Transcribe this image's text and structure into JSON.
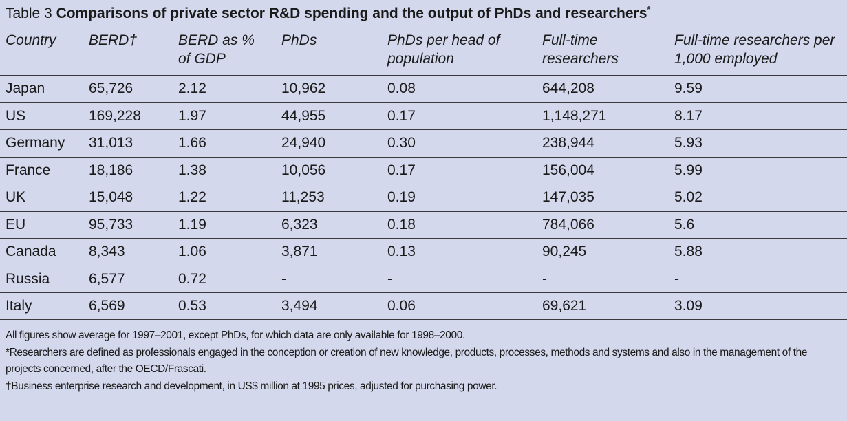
{
  "title": {
    "number": "Table 3",
    "text": "Comparisons of private sector R&D spending and the output of PhDs and researchers",
    "marker": "*"
  },
  "table": {
    "headers": [
      "Country",
      "BERD†",
      "BERD as % of GDP",
      "PhDs",
      "PhDs per head of population",
      "Full-time researchers",
      "Full-time researchers per 1,000 employed"
    ],
    "rows": [
      [
        "Japan",
        "65,726",
        "2.12",
        "10,962",
        "0.08",
        "644,208",
        "9.59"
      ],
      [
        "US",
        "169,228",
        "1.97",
        "44,955",
        "0.17",
        "1,148,271",
        "8.17"
      ],
      [
        "Germany",
        "31,013",
        "1.66",
        "24,940",
        "0.30",
        "238,944",
        "5.93"
      ],
      [
        "France",
        "18,186",
        "1.38",
        "10,056",
        "0.17",
        "156,004",
        "5.99"
      ],
      [
        "UK",
        "15,048",
        "1.22",
        "11,253",
        "0.19",
        "147,035",
        "5.02"
      ],
      [
        "EU",
        "95,733",
        "1.19",
        "6,323",
        "0.18",
        "784,066",
        "5.6"
      ],
      [
        "Canada",
        "8,343",
        "1.06",
        "3,871",
        "0.13",
        "90,245",
        "5.88"
      ],
      [
        "Russia",
        "6,577",
        "0.72",
        "-",
        "-",
        "-",
        "-"
      ],
      [
        "Italy",
        "6,569",
        "0.53",
        "3,494",
        "0.06",
        "69,621",
        "3.09"
      ]
    ]
  },
  "notes": [
    "All figures show average for 1997–2001, except PhDs, for which data are only available for 1998–2000.",
    "*Researchers are defined as professionals engaged in the conception or creation of new knowledge, products, processes, methods and systems and also in the management of the projects concerned, after the OECD/Frascati.",
    "†Business enterprise research and development, in US$ million at 1995 prices, adjusted for purchasing power."
  ],
  "colors": {
    "background": "#d3d8ec",
    "rule": "#3a3a3a",
    "text": "#1a1a1a"
  }
}
